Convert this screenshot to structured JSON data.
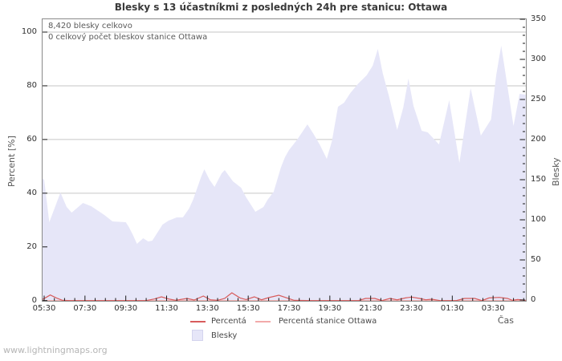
{
  "title": "Blesky s 13 účastníkmi z posledných 24h pre stanicu: Ottawa",
  "annotations": {
    "total": "8,420 blesky celkovo",
    "station": "0 celkový počet bleskov stanice Ottawa"
  },
  "axes": {
    "left": {
      "label": "Percent  [%]",
      "ticks": [
        0,
        20,
        40,
        60,
        80,
        100
      ]
    },
    "right": {
      "label": "Blesky",
      "ticks": [
        0,
        50,
        100,
        150,
        200,
        250,
        300,
        350
      ]
    },
    "x": {
      "label": "Čas",
      "ticks": [
        {
          "label": "05:30",
          "t": 0
        },
        {
          "label": "07:30",
          "t": 2
        },
        {
          "label": "09:30",
          "t": 4
        },
        {
          "label": "11:30",
          "t": 6
        },
        {
          "label": "13:30",
          "t": 8
        },
        {
          "label": "15:30",
          "t": 10
        },
        {
          "label": "17:30",
          "t": 12
        },
        {
          "label": "19:30",
          "t": 14
        },
        {
          "label": "21:30",
          "t": 16
        },
        {
          "label": "23:30",
          "t": 18
        },
        {
          "label": "01:30",
          "t": 20
        },
        {
          "label": "03:30",
          "t": 22
        }
      ]
    }
  },
  "legend": [
    {
      "label": "Percentá",
      "color": "#d85c5c",
      "type": "line"
    },
    {
      "label": "Percentá stanice Ottawa",
      "color": "#f2aaaa",
      "type": "line"
    },
    {
      "label": "Blesky",
      "color": "#e6e6f8",
      "type": "area"
    }
  ],
  "watermark": "www.lightningmaps.org",
  "colors": {
    "area_fill": "#e6e6f8",
    "percenta_line": "#d85c5c",
    "station_line": "#f2aaaa",
    "grid": "#c6c6c6",
    "frame": "#8a8a8a",
    "tick": "#1a1a1a"
  },
  "chart_data": {
    "type": "area",
    "title": "Blesky s 13 účastníkmi z posledných 24h pre stanicu: Ottawa",
    "xlabel": "Čas",
    "ylabel_left": "Percent [%]",
    "ylabel_right": "Blesky",
    "x_unit": "hours since 05:30",
    "x_range_hours": [
      -0.12,
      23.6
    ],
    "ylim_left": [
      0,
      100
    ],
    "ylim_right": [
      0,
      350
    ],
    "grid": "horizontal-only",
    "legend_position": "bottom-center",
    "series": [
      {
        "name": "Blesky",
        "axis": "right",
        "type": "area",
        "color": "#e6e6f8",
        "points": [
          [
            -0.12,
            152
          ],
          [
            0,
            150
          ],
          [
            0.25,
            97
          ],
          [
            0.8,
            134
          ],
          [
            1.1,
            116
          ],
          [
            1.35,
            109
          ],
          [
            1.9,
            121
          ],
          [
            2.3,
            117
          ],
          [
            2.95,
            106
          ],
          [
            3.35,
            98
          ],
          [
            4.0,
            97
          ],
          [
            4.15,
            91
          ],
          [
            4.35,
            81
          ],
          [
            4.55,
            70
          ],
          [
            4.85,
            77
          ],
          [
            5.1,
            73
          ],
          [
            5.3,
            74
          ],
          [
            5.8,
            94
          ],
          [
            6.1,
            99
          ],
          [
            6.5,
            103
          ],
          [
            6.8,
            103
          ],
          [
            7.1,
            114
          ],
          [
            7.3,
            125
          ],
          [
            7.7,
            154
          ],
          [
            7.85,
            163
          ],
          [
            8.1,
            150
          ],
          [
            8.35,
            141
          ],
          [
            8.7,
            158
          ],
          [
            8.85,
            162
          ],
          [
            9.25,
            148
          ],
          [
            9.65,
            140
          ],
          [
            9.9,
            128
          ],
          [
            10.35,
            110
          ],
          [
            10.75,
            116
          ],
          [
            10.95,
            125
          ],
          [
            11.25,
            135
          ],
          [
            11.6,
            165
          ],
          [
            11.8,
            178
          ],
          [
            12.0,
            187
          ],
          [
            12.4,
            200
          ],
          [
            12.9,
            219
          ],
          [
            13.2,
            207
          ],
          [
            13.5,
            194
          ],
          [
            13.85,
            176
          ],
          [
            14.1,
            198
          ],
          [
            14.4,
            241
          ],
          [
            14.7,
            246
          ],
          [
            15.0,
            258
          ],
          [
            15.4,
            270
          ],
          [
            15.8,
            280
          ],
          [
            16.1,
            292
          ],
          [
            16.35,
            313
          ],
          [
            16.6,
            282
          ],
          [
            16.9,
            254
          ],
          [
            17.3,
            212
          ],
          [
            17.6,
            240
          ],
          [
            17.85,
            276
          ],
          [
            18.1,
            242
          ],
          [
            18.5,
            211
          ],
          [
            18.8,
            209
          ],
          [
            19.35,
            194
          ],
          [
            19.85,
            249
          ],
          [
            20.35,
            171
          ],
          [
            20.9,
            264
          ],
          [
            21.4,
            205
          ],
          [
            21.9,
            225
          ],
          [
            22.15,
            280
          ],
          [
            22.4,
            317
          ],
          [
            22.75,
            259
          ],
          [
            23.0,
            217
          ],
          [
            23.3,
            257
          ],
          [
            23.6,
            256
          ]
        ]
      },
      {
        "name": "Percentá",
        "axis": "left",
        "type": "line",
        "color": "#d85c5c",
        "points": [
          [
            -0.12,
            0.3
          ],
          [
            0.1,
            1.2
          ],
          [
            0.3,
            2.1
          ],
          [
            0.6,
            1.0
          ],
          [
            0.9,
            0.1
          ],
          [
            1.3,
            0
          ],
          [
            3.0,
            0
          ],
          [
            5.0,
            0
          ],
          [
            5.4,
            0.6
          ],
          [
            5.75,
            1.4
          ],
          [
            6.1,
            0.6
          ],
          [
            6.45,
            0.1
          ],
          [
            7.0,
            0.8
          ],
          [
            7.35,
            0.2
          ],
          [
            7.8,
            1.7
          ],
          [
            8.15,
            0.3
          ],
          [
            8.5,
            0.1
          ],
          [
            8.85,
            0.8
          ],
          [
            9.2,
            2.9
          ],
          [
            9.6,
            1.0
          ],
          [
            9.9,
            0.4
          ],
          [
            10.3,
            1.4
          ],
          [
            10.65,
            0.3
          ],
          [
            11.0,
            1.1
          ],
          [
            11.5,
            2.0
          ],
          [
            11.9,
            1.0
          ],
          [
            12.25,
            0.1
          ],
          [
            13.0,
            0
          ],
          [
            15.4,
            0
          ],
          [
            15.75,
            0.8
          ],
          [
            16.2,
            0.8
          ],
          [
            16.55,
            0
          ],
          [
            16.95,
            0.8
          ],
          [
            17.3,
            0.3
          ],
          [
            17.7,
            1.0
          ],
          [
            18.0,
            1.3
          ],
          [
            18.4,
            0.8
          ],
          [
            18.7,
            0.3
          ],
          [
            19.0,
            0.5
          ],
          [
            19.4,
            0
          ],
          [
            20.2,
            0
          ],
          [
            20.6,
            0.8
          ],
          [
            21.1,
            0.8
          ],
          [
            21.45,
            0
          ],
          [
            21.8,
            1.0
          ],
          [
            22.3,
            1.2
          ],
          [
            22.7,
            0.8
          ],
          [
            22.95,
            0.1
          ],
          [
            23.2,
            0.4
          ],
          [
            23.6,
            0.1
          ]
        ]
      },
      {
        "name": "Percentá stanice Ottawa",
        "axis": "left",
        "type": "line",
        "color": "#f2aaaa",
        "points": [
          [
            -0.12,
            0
          ],
          [
            23.6,
            0
          ]
        ]
      }
    ]
  }
}
